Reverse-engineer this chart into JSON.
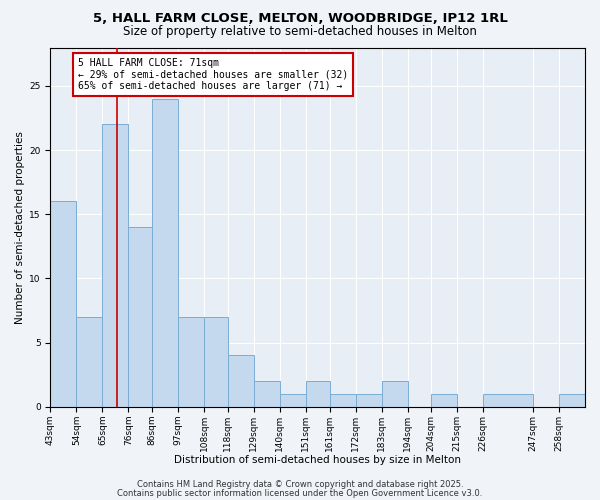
{
  "title1": "5, HALL FARM CLOSE, MELTON, WOODBRIDGE, IP12 1RL",
  "title2": "Size of property relative to semi-detached houses in Melton",
  "xlabel": "Distribution of semi-detached houses by size in Melton",
  "ylabel": "Number of semi-detached properties",
  "bin_labels": [
    "43sqm",
    "54sqm",
    "65sqm",
    "76sqm",
    "86sqm",
    "97sqm",
    "108sqm",
    "118sqm",
    "129sqm",
    "140sqm",
    "151sqm",
    "161sqm",
    "172sqm",
    "183sqm",
    "194sqm",
    "204sqm",
    "215sqm",
    "226sqm",
    "247sqm",
    "258sqm"
  ],
  "bin_edges": [
    43,
    54,
    65,
    76,
    86,
    97,
    108,
    118,
    129,
    140,
    151,
    161,
    172,
    183,
    194,
    204,
    215,
    226,
    247,
    258,
    269
  ],
  "values": [
    16,
    7,
    22,
    14,
    24,
    7,
    7,
    4,
    2,
    1,
    2,
    1,
    1,
    2,
    0,
    1,
    0,
    1,
    0,
    1
  ],
  "bar_color": "#c5d9ee",
  "bar_edge_color": "#7aadd4",
  "property_size": 71,
  "red_line_color": "#cc0000",
  "annotation_line1": "5 HALL FARM CLOSE: 71sqm",
  "annotation_line2": "← 29% of semi-detached houses are smaller (32)",
  "annotation_line3": "65% of semi-detached houses are larger (71) →",
  "annotation_box_color": "#ffffff",
  "annotation_box_edge": "#cc0000",
  "ylim": [
    0,
    28
  ],
  "yticks": [
    0,
    5,
    10,
    15,
    20,
    25
  ],
  "footer_line1": "Contains HM Land Registry data © Crown copyright and database right 2025.",
  "footer_line2": "Contains public sector information licensed under the Open Government Licence v3.0.",
  "bg_color": "#f0f4f8",
  "plot_bg_color": "#e8eef5",
  "grid_color": "#ffffff",
  "title_fontsize": 9.5,
  "subtitle_fontsize": 8.5,
  "axis_label_fontsize": 7.5,
  "tick_fontsize": 6.5,
  "annotation_fontsize": 7,
  "footer_fontsize": 6
}
